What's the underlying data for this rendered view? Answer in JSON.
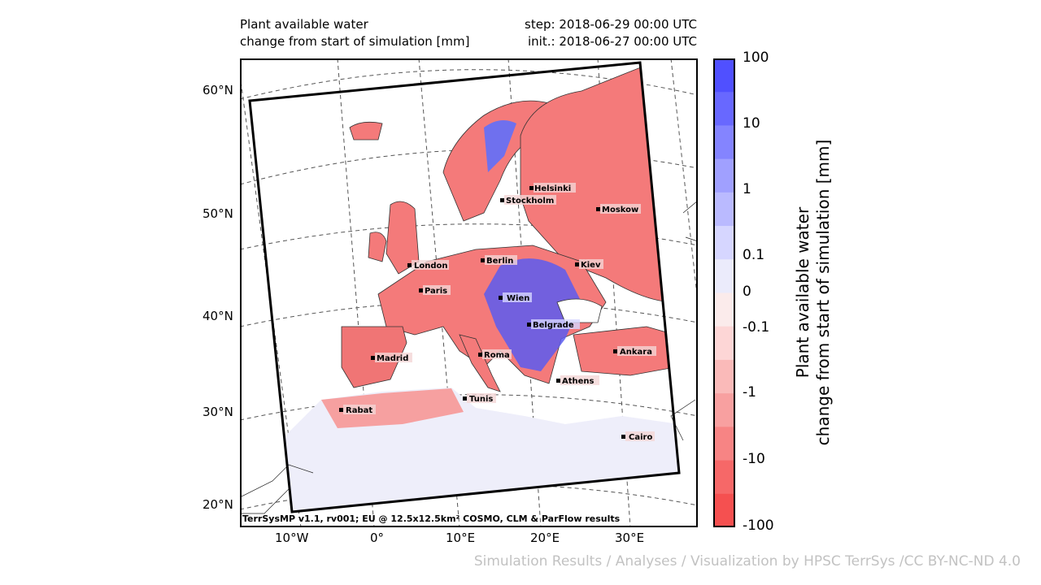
{
  "header": {
    "title_line1": "Plant available water",
    "title_line2": "change from start of simulation [mm]",
    "step_text": "step: 2018-06-29 00:00 UTC",
    "init_text": "init.: 2018-06-27 00:00 UTC"
  },
  "map": {
    "lat_labels": [
      "60°N",
      "50°N",
      "40°N",
      "30°N",
      "20°N"
    ],
    "lon_labels": [
      "10°W",
      "0°",
      "10°E",
      "20°E",
      "30°E"
    ],
    "cities": [
      {
        "name": "Helsinki"
      },
      {
        "name": "Stockholm"
      },
      {
        "name": "Moskow"
      },
      {
        "name": "London"
      },
      {
        "name": "Berlin"
      },
      {
        "name": "Kiev"
      },
      {
        "name": "Paris"
      },
      {
        "name": "Wien"
      },
      {
        "name": "Belgrade"
      },
      {
        "name": "Madrid"
      },
      {
        "name": "Roma"
      },
      {
        "name": "Ankara"
      },
      {
        "name": "Athens"
      },
      {
        "name": "Tunis"
      },
      {
        "name": "Rabat"
      },
      {
        "name": "Cairo"
      }
    ],
    "credit": "TerrSysMP v1.1, rv001; EU @ 12.5x12.5km² COSMO, CLM & ParFlow results",
    "colors": {
      "dry": "#f47a7a",
      "wet": "#5a5cf0",
      "neutral": "#eeeefa"
    }
  },
  "colorbar": {
    "ticks": [
      "100",
      "10",
      "1",
      "0.1",
      "0",
      "-0.1",
      "-1",
      "-10",
      "-100"
    ],
    "colors": [
      "#5050ff",
      "#6868ff",
      "#8484ff",
      "#a0a0ff",
      "#babaff",
      "#d6d6ff",
      "#ebebfb",
      "#fbebeb",
      "#fdd6d6",
      "#fabab9",
      "#f8a0a0",
      "#f78484",
      "#f66868",
      "#f55050"
    ],
    "label_line1": "Plant available water",
    "label_line2": "change from start of simulation [mm]"
  },
  "footer": {
    "text": "Simulation Results / Analyses / Visualization by HPSC TerrSys /CC BY-NC-ND 4.0"
  }
}
